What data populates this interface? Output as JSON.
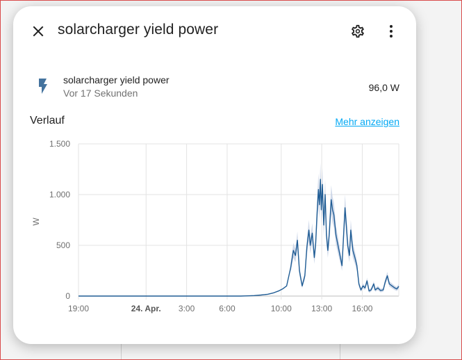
{
  "dialog": {
    "title": "solarcharger yield power",
    "icons": {
      "close": "close-icon",
      "settings": "gear-icon",
      "more": "more-vertical-icon"
    }
  },
  "entity": {
    "name": "solarcharger yield power",
    "last_changed": "Vor 17 Sekunden",
    "value": "96,0 W",
    "icon": "flash-icon"
  },
  "history": {
    "title": "Verlauf",
    "more_link": "Mehr anzeigen"
  },
  "colors": {
    "line": "#1f5c94",
    "band": "#c9d3e6",
    "link": "#03a9f4"
  },
  "chart_data": {
    "type": "line",
    "title": "",
    "xlabel": "",
    "ylabel": "W",
    "xlim": [
      19,
      42.7
    ],
    "ylim": [
      0,
      1500
    ],
    "grid": true,
    "x_ticks": [
      {
        "x": 19,
        "label": "19:00",
        "bold": false
      },
      {
        "x": 24,
        "label": "24. Apr.",
        "bold": true
      },
      {
        "x": 27,
        "label": "3:00",
        "bold": false
      },
      {
        "x": 30,
        "label": "6:00",
        "bold": false
      },
      {
        "x": 34,
        "label": "10:00",
        "bold": false
      },
      {
        "x": 37,
        "label": "13:00",
        "bold": false
      },
      {
        "x": 40,
        "label": "16:00",
        "bold": false
      }
    ],
    "y_ticks": [
      {
        "y": 0,
        "label": "0"
      },
      {
        "y": 500,
        "label": "500"
      },
      {
        "y": 1000,
        "label": "1.000"
      },
      {
        "y": 1500,
        "label": "1.500"
      }
    ],
    "series": [
      {
        "points": [
          [
            19.0,
            0
          ],
          [
            20.0,
            0
          ],
          [
            22.0,
            0
          ],
          [
            24.0,
            0
          ],
          [
            26.0,
            0
          ],
          [
            28.0,
            0
          ],
          [
            30.0,
            0
          ],
          [
            31.0,
            0
          ],
          [
            31.5,
            2
          ],
          [
            32.0,
            5
          ],
          [
            32.5,
            10
          ],
          [
            33.0,
            18
          ],
          [
            33.4,
            30
          ],
          [
            33.8,
            50
          ],
          [
            34.1,
            70
          ],
          [
            34.4,
            100
          ],
          [
            34.7,
            280
          ],
          [
            34.9,
            450
          ],
          [
            35.05,
            400
          ],
          [
            35.2,
            550
          ],
          [
            35.35,
            250
          ],
          [
            35.55,
            100
          ],
          [
            35.75,
            200
          ],
          [
            35.9,
            480
          ],
          [
            36.05,
            650
          ],
          [
            36.15,
            500
          ],
          [
            36.3,
            620
          ],
          [
            36.45,
            380
          ],
          [
            36.55,
            520
          ],
          [
            36.65,
            800
          ],
          [
            36.75,
            1050
          ],
          [
            36.83,
            900
          ],
          [
            36.9,
            1150
          ],
          [
            36.97,
            850
          ],
          [
            37.05,
            1100
          ],
          [
            37.15,
            700
          ],
          [
            37.25,
            1000
          ],
          [
            37.35,
            600
          ],
          [
            37.45,
            450
          ],
          [
            37.55,
            600
          ],
          [
            37.7,
            950
          ],
          [
            37.8,
            850
          ],
          [
            37.9,
            800
          ],
          [
            38.05,
            600
          ],
          [
            38.2,
            500
          ],
          [
            38.35,
            400
          ],
          [
            38.5,
            300
          ],
          [
            38.6,
            550
          ],
          [
            38.72,
            870
          ],
          [
            38.82,
            700
          ],
          [
            38.92,
            500
          ],
          [
            39.05,
            400
          ],
          [
            39.15,
            650
          ],
          [
            39.3,
            450
          ],
          [
            39.45,
            380
          ],
          [
            39.6,
            300
          ],
          [
            39.75,
            120
          ],
          [
            39.9,
            60
          ],
          [
            40.05,
            100
          ],
          [
            40.2,
            80
          ],
          [
            40.35,
            150
          ],
          [
            40.5,
            50
          ],
          [
            40.65,
            60
          ],
          [
            40.85,
            120
          ],
          [
            40.95,
            60
          ],
          [
            41.15,
            80
          ],
          [
            41.35,
            55
          ],
          [
            41.55,
            60
          ],
          [
            41.7,
            140
          ],
          [
            41.85,
            200
          ],
          [
            42.0,
            120
          ],
          [
            42.2,
            100
          ],
          [
            42.4,
            80
          ],
          [
            42.55,
            70
          ],
          [
            42.7,
            95
          ]
        ]
      }
    ]
  }
}
